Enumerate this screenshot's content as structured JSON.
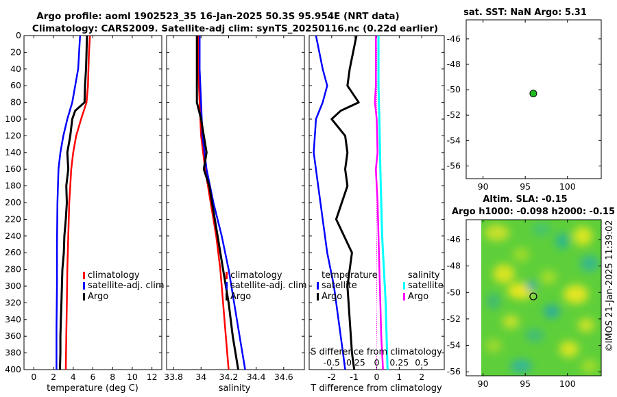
{
  "figure": {
    "title_line1": "Argo profile: aoml 1902523_35 16-Jan-2025 50.3S 95.954E (NRT data)",
    "title_line2": "Climatology: CARS2009. Satellite-adj clim: synTS_20250116.nc (0.22d earlier)",
    "credit": "©IMOS 21-Jan-2025 11:39:02"
  },
  "colors": {
    "climatology": "#ff0000",
    "satellite": "#0000ff",
    "argo": "#000000",
    "sat_cyan": "#00ffff",
    "argo_magenta": "#ff00ff",
    "marker": "#22bb22"
  },
  "chart_data": [
    {
      "type": "line",
      "id": "temperature",
      "xlabel": "temperature (deg C)",
      "ylabel": "",
      "xlim": [
        -1,
        13
      ],
      "ylim": [
        400,
        0
      ],
      "x_ticks": [
        "0",
        "2",
        "4",
        "6",
        "8",
        "10",
        "12"
      ],
      "y_ticks": [
        "0",
        "20",
        "40",
        "60",
        "80",
        "100",
        "120",
        "140",
        "160",
        "180",
        "200",
        "220",
        "240",
        "260",
        "280",
        "300",
        "320",
        "340",
        "360",
        "380",
        "400"
      ],
      "legend": [
        "climatology",
        "satellite-adj. clim",
        "Argo"
      ],
      "series": [
        {
          "name": "climatology",
          "depth": [
            0,
            20,
            40,
            60,
            80,
            100,
            120,
            140,
            160,
            180,
            200,
            240,
            280,
            320,
            360,
            400
          ],
          "values": [
            5.7,
            5.6,
            5.55,
            5.5,
            5.35,
            4.8,
            4.3,
            4.0,
            3.8,
            3.7,
            3.6,
            3.5,
            3.4,
            3.35,
            3.3,
            3.25
          ]
        },
        {
          "name": "satellite-adj. clim",
          "depth": [
            0,
            20,
            40,
            60,
            80,
            100,
            120,
            140,
            160,
            200,
            250,
            300,
            350,
            400
          ],
          "values": [
            4.7,
            4.6,
            4.5,
            4.2,
            3.9,
            3.4,
            3.0,
            2.7,
            2.5,
            2.4,
            2.35,
            2.35,
            2.3,
            2.3
          ]
        },
        {
          "name": "Argo",
          "depth": [
            0,
            20,
            40,
            60,
            80,
            90,
            100,
            120,
            140,
            160,
            180,
            200,
            220,
            240,
            260,
            280,
            300,
            320,
            340,
            360,
            380,
            400
          ],
          "values": [
            5.4,
            5.35,
            5.3,
            5.2,
            5.15,
            4.2,
            3.9,
            3.7,
            3.4,
            3.5,
            3.3,
            3.35,
            3.25,
            3.1,
            3.05,
            2.9,
            2.85,
            2.8,
            2.75,
            2.7,
            2.7,
            2.65
          ]
        }
      ]
    },
    {
      "type": "line",
      "id": "salinity",
      "xlabel": "salinity",
      "xlim": [
        33.75,
        34.75
      ],
      "ylim": [
        400,
        0
      ],
      "x_ticks": [
        "33.8",
        "34",
        "34.2",
        "34.4",
        "34.6"
      ],
      "legend": [
        "climatology",
        "satellite-adj. clim",
        "Argo"
      ],
      "series": [
        {
          "name": "climatology",
          "depth": [
            0,
            40,
            80,
            120,
            160,
            200,
            240,
            280,
            320,
            360,
            400
          ],
          "values": [
            33.98,
            33.98,
            33.99,
            34.0,
            34.03,
            34.07,
            34.11,
            34.14,
            34.16,
            34.18,
            34.2
          ]
        },
        {
          "name": "satellite-adj. clim",
          "depth": [
            0,
            40,
            80,
            120,
            160,
            200,
            240,
            280,
            320,
            360,
            400
          ],
          "values": [
            33.99,
            33.99,
            34.0,
            34.01,
            34.04,
            34.09,
            34.15,
            34.2,
            34.24,
            34.28,
            34.32
          ]
        },
        {
          "name": "Argo",
          "depth": [
            0,
            40,
            80,
            100,
            120,
            140,
            160,
            180,
            200,
            240,
            280,
            320,
            360,
            400
          ],
          "values": [
            33.97,
            33.97,
            33.97,
            34.0,
            34.02,
            34.04,
            34.02,
            34.06,
            34.08,
            34.12,
            34.16,
            34.2,
            34.23,
            34.27
          ]
        }
      ]
    },
    {
      "type": "line",
      "id": "difference",
      "xlabel": "T difference from climatology",
      "xlabel_top": "S difference from climatology",
      "xlim": [
        -3,
        3
      ],
      "ylim": [
        400,
        0
      ],
      "x_ticks": [
        "-2",
        "-1",
        "0",
        "1",
        "2"
      ],
      "x_ticks_s": [
        "-0.5",
        "-0.25",
        "0",
        "0.25",
        "0.5"
      ],
      "legend_t_title": "temperature",
      "legend_t": [
        "satellite",
        "Argo"
      ],
      "legend_s_title": "salinity",
      "legend_s": [
        "satellite",
        "Argo"
      ],
      "series": [
        {
          "name": "T satellite",
          "depth": [
            0,
            40,
            60,
            80,
            100,
            140,
            180,
            220,
            260,
            300,
            340,
            380,
            400
          ],
          "values": [
            -2.7,
            -2.4,
            -2.2,
            -2.4,
            -2.7,
            -2.8,
            -2.6,
            -2.4,
            -2.2,
            -1.9,
            -1.7,
            -1.5,
            -1.4
          ]
        },
        {
          "name": "T Argo",
          "depth": [
            0,
            40,
            60,
            80,
            90,
            100,
            120,
            140,
            160,
            180,
            220,
            260,
            300,
            340,
            380,
            400
          ],
          "values": [
            -0.9,
            -1.2,
            -1.3,
            -0.8,
            -1.6,
            -2.0,
            -1.4,
            -1.3,
            -1.4,
            -1.3,
            -1.8,
            -1.1,
            -1.3,
            -1.2,
            -1.1,
            -1.0
          ]
        },
        {
          "name": "S satellite",
          "depth": [
            0,
            60,
            100,
            160,
            200,
            240,
            280,
            320,
            360,
            400
          ],
          "values": [
            0.02,
            0.02,
            0.03,
            0.04,
            0.05,
            0.06,
            0.08,
            0.1,
            0.11,
            0.12
          ]
        },
        {
          "name": "S Argo",
          "depth": [
            0,
            60,
            80,
            100,
            140,
            160,
            200,
            240,
            280,
            320,
            360,
            400
          ],
          "values": [
            -0.01,
            -0.01,
            -0.02,
            0.0,
            0.01,
            -0.01,
            0.01,
            0.02,
            0.03,
            0.04,
            0.05,
            0.07
          ]
        }
      ]
    },
    {
      "type": "scatter",
      "id": "sst_map",
      "title": "sat. SST: NaN Argo: 5.31",
      "xlim": [
        88,
        104
      ],
      "ylim": [
        -57,
        -44.5
      ],
      "x_ticks": [
        "90",
        "95",
        "100"
      ],
      "y_ticks": [
        "-46",
        "-48",
        "-50",
        "-52",
        "-54",
        "-56"
      ],
      "point": {
        "lon": 95.954,
        "lat": -50.3
      }
    },
    {
      "type": "heatmap",
      "id": "sla_map",
      "title_line1": "Altim. SLA: -0.15",
      "title_line2": "Argo h1000: -0.098 h2000: -0.15",
      "xlim": [
        88,
        104
      ],
      "ylim": [
        -56.3,
        -44.5
      ],
      "x_ticks": [
        "90",
        "95",
        "100"
      ],
      "y_ticks": [
        "-46",
        "-48",
        "-50",
        "-52",
        "-54",
        "-56"
      ],
      "data_lon_min": 89.8,
      "point": {
        "lon": 95.954,
        "lat": -50.3
      }
    }
  ]
}
